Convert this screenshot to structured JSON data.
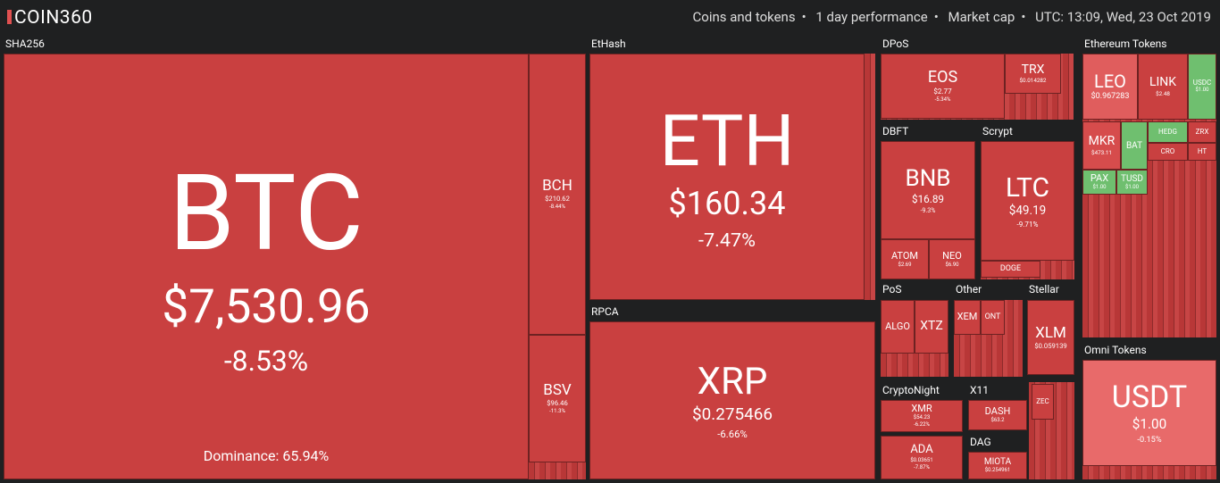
{
  "header": {
    "logo": "COIN360",
    "filters": [
      "Coins and tokens",
      "1 day performance",
      "Market cap",
      "UTC: 13:09, Wed, 23 Oct 2019"
    ]
  },
  "groups": [
    {
      "label": "SHA256",
      "tiles": [
        {
          "symbol": "BTC",
          "price": "$7,530.96",
          "change": "-8.53%",
          "note": "Dominance: 65.94%"
        },
        {
          "symbol": "BCH",
          "price": "$210.62",
          "change": "-8.44%"
        },
        {
          "symbol": "BSV",
          "price": "$96.46",
          "change": "-11.3%"
        }
      ]
    },
    {
      "label": "EtHash",
      "tiles": [
        {
          "symbol": "ETH",
          "price": "$160.34",
          "change": "-7.47%"
        }
      ]
    },
    {
      "label": "RPCA",
      "tiles": [
        {
          "symbol": "XRP",
          "price": "$0.275466",
          "change": "-6.66%"
        }
      ]
    },
    {
      "label": "DPoS",
      "tiles": [
        {
          "symbol": "EOS",
          "price": "$2.77",
          "change": "-5.34%"
        },
        {
          "symbol": "TRX",
          "price": "$0.014282"
        }
      ]
    },
    {
      "label": "DBFT",
      "tiles": [
        {
          "symbol": "BNB",
          "price": "$16.89",
          "change": "-9.3%"
        },
        {
          "symbol": "ATOM",
          "price": "$2.69"
        },
        {
          "symbol": "NEO",
          "price": "$6.90"
        }
      ]
    },
    {
      "label": "Scrypt",
      "tiles": [
        {
          "symbol": "LTC",
          "price": "$49.19",
          "change": "-9.71%"
        },
        {
          "symbol": "DOGE"
        }
      ]
    },
    {
      "label": "PoS",
      "tiles": [
        {
          "symbol": "ALGO"
        },
        {
          "symbol": "XTZ"
        }
      ]
    },
    {
      "label": "Other",
      "tiles": [
        {
          "symbol": "XEM"
        },
        {
          "symbol": "ONT"
        }
      ]
    },
    {
      "label": "Stellar",
      "tiles": [
        {
          "symbol": "XLM",
          "price": "$0.059139"
        }
      ]
    },
    {
      "label": "CryptoNight",
      "tiles": [
        {
          "symbol": "XMR",
          "price": "$54.23",
          "change": "-6.22%"
        },
        {
          "symbol": "ADA",
          "price": "$0.03651",
          "change": "-7.87%"
        }
      ]
    },
    {
      "label": "X11",
      "tiles": [
        {
          "symbol": "DASH",
          "price": "$63.2"
        },
        {
          "symbol": "ZEC"
        }
      ]
    },
    {
      "label": "DAG",
      "tiles": [
        {
          "symbol": "MIOTA",
          "price": "$0.254961"
        }
      ]
    },
    {
      "label": "Ethereum Tokens",
      "tiles": [
        {
          "symbol": "LEO",
          "price": "$0.967283"
        },
        {
          "symbol": "LINK",
          "price": "$2.48"
        },
        {
          "symbol": "USDC",
          "price": "$1.00"
        },
        {
          "symbol": "MKR",
          "price": "$473.11"
        },
        {
          "symbol": "BAT"
        },
        {
          "symbol": "HEDG"
        },
        {
          "symbol": "ZRX"
        },
        {
          "symbol": "CRO"
        },
        {
          "symbol": "HT"
        },
        {
          "symbol": "PAX",
          "price": "$1.00"
        },
        {
          "symbol": "TUSD",
          "price": "$1.00"
        }
      ]
    },
    {
      "label": "Omni Tokens",
      "tiles": [
        {
          "symbol": "USDT",
          "price": "$1.00",
          "change": "-0.15%"
        }
      ]
    }
  ]
}
